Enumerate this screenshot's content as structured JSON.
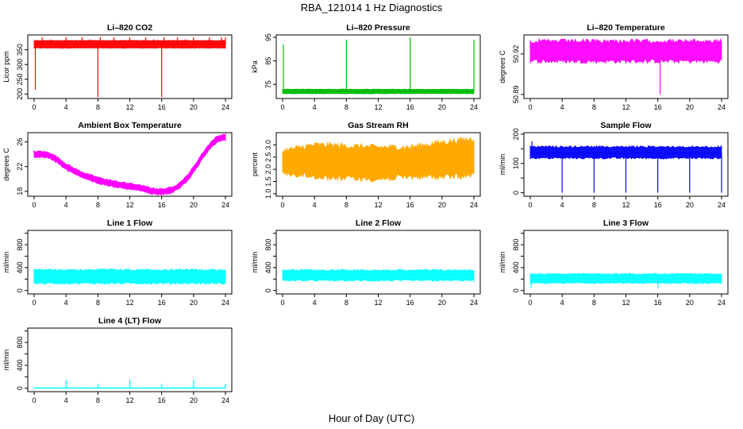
{
  "figure": {
    "title": "RBA_121014  1 Hz Diagnostics",
    "xlabel": "Hour of Day (UTC)"
  },
  "chart_data": [
    {
      "type": "line",
      "title": "Li–820 CO2",
      "ylabel": "Licor ppm",
      "color": "#ff0000",
      "xlim": [
        0,
        24
      ],
      "xticks": [
        0,
        4,
        8,
        12,
        16,
        20,
        24
      ],
      "ylim": [
        185,
        400
      ],
      "yticks": [
        200,
        250,
        300,
        350
      ],
      "yticklabels": [
        "200",
        "250",
        "300",
        "350"
      ],
      "series": [
        {
          "name": "CO2",
          "base": 368,
          "noise": 5,
          "min": 355,
          "max": 382,
          "spikes": [
            {
              "x": 0.15,
              "y": 215
            },
            {
              "x": 1.0,
              "y": 392
            },
            {
              "x": 2.0,
              "y": 385
            },
            {
              "x": 4.0,
              "y": 392
            },
            {
              "x": 6.0,
              "y": 392
            },
            {
              "x": 7.0,
              "y": 385
            },
            {
              "x": 8.0,
              "y": 190
            },
            {
              "x": 8.3,
              "y": 392
            },
            {
              "x": 10.0,
              "y": 392
            },
            {
              "x": 12.0,
              "y": 392
            },
            {
              "x": 14.0,
              "y": 392
            },
            {
              "x": 15.0,
              "y": 385
            },
            {
              "x": 16.0,
              "y": 190
            },
            {
              "x": 16.3,
              "y": 392
            },
            {
              "x": 18.0,
              "y": 392
            },
            {
              "x": 19.0,
              "y": 385
            },
            {
              "x": 20.0,
              "y": 392
            },
            {
              "x": 22.0,
              "y": 392
            },
            {
              "x": 23.5,
              "y": 392
            },
            {
              "x": 24.0,
              "y": 392
            }
          ]
        }
      ]
    },
    {
      "type": "line",
      "title": "Li–820 Pressure",
      "ylabel": "kPa",
      "color": "#00bb00",
      "xlim": [
        0,
        24
      ],
      "xticks": [
        0,
        4,
        8,
        12,
        16,
        20,
        24
      ],
      "ylim": [
        69,
        96
      ],
      "yticks": [
        75,
        85,
        95
      ],
      "yticklabels": [
        "75",
        "85",
        "95"
      ],
      "series": [
        {
          "name": "Pressure",
          "base": 71.8,
          "noise": 0.5,
          "min": 71.0,
          "max": 73.0,
          "spikes": [
            {
              "x": 0.1,
              "y": 92
            },
            {
              "x": 8.0,
              "y": 94
            },
            {
              "x": 16.0,
              "y": 95
            },
            {
              "x": 24.0,
              "y": 94
            }
          ]
        }
      ]
    },
    {
      "type": "line",
      "title": "Li–820 Temperature",
      "ylabel": "degrees C",
      "color": "#ff00ff",
      "xlim": [
        0,
        24
      ],
      "xticks": [
        0,
        4,
        8,
        12,
        16,
        20,
        24
      ],
      "ylim": [
        50.887,
        50.934
      ],
      "yticks": [
        50.89,
        50.92
      ],
      "yticklabels": [
        "50.89",
        "50.92"
      ],
      "series": [
        {
          "name": "Temperature",
          "base": 50.922,
          "noise": 0.0095,
          "min": 50.913,
          "max": 50.931,
          "spikes": [
            {
              "x": 16.3,
              "y": 50.89
            }
          ]
        }
      ]
    },
    {
      "type": "line",
      "title": "Ambient Box Temperature",
      "ylabel": "degrees C",
      "color": "#ff00ff",
      "xlim": [
        0,
        24
      ],
      "xticks": [
        0,
        4,
        8,
        12,
        16,
        20,
        24
      ],
      "ylim": [
        17.2,
        27.5
      ],
      "yticks": [
        18,
        22,
        26
      ],
      "yticklabels": [
        "18",
        "22",
        "26"
      ],
      "band": 0.9,
      "series": [
        {
          "name": "Box T",
          "x": [
            0,
            1,
            2,
            3,
            4,
            5,
            6,
            7,
            8,
            9,
            10,
            11,
            12,
            13,
            14,
            15,
            16,
            17,
            18,
            19,
            20,
            21,
            22,
            23,
            24
          ],
          "y": [
            24.0,
            24.0,
            23.8,
            23.0,
            22.0,
            21.3,
            20.7,
            20.2,
            19.8,
            19.5,
            19.2,
            19.0,
            18.8,
            18.6,
            18.3,
            18.0,
            17.9,
            18.1,
            18.7,
            19.8,
            21.5,
            23.5,
            25.3,
            26.5,
            26.8
          ]
        }
      ]
    },
    {
      "type": "line",
      "title": "Gas Stream RH",
      "ylabel": "percent",
      "color": "#ffaa00",
      "xlim": [
        0,
        24
      ],
      "xticks": [
        0,
        4,
        8,
        12,
        16,
        20,
        24
      ],
      "ylim": [
        0.9,
        3.5
      ],
      "yticks": [
        1.0,
        1.5,
        2.0,
        2.5,
        3.0
      ],
      "yticklabels": [
        "1.0",
        "1.5",
        "2.0",
        "2.5",
        "3.0"
      ],
      "series": [
        {
          "name": "RH",
          "x": [
            0,
            4,
            8,
            12,
            16,
            20,
            24
          ],
          "y": [
            2.3,
            2.35,
            2.3,
            2.25,
            2.3,
            2.4,
            2.5
          ],
          "halfwidth": [
            0.45,
            0.65,
            0.65,
            0.65,
            0.6,
            0.7,
            0.75
          ]
        }
      ]
    },
    {
      "type": "line",
      "title": "Sample Flow",
      "ylabel": "ml/min",
      "color": "#0000ff",
      "xlim": [
        0,
        24
      ],
      "xticks": [
        0,
        4,
        8,
        12,
        16,
        20,
        24
      ],
      "ylim": [
        -12,
        205
      ],
      "yticks": [
        0,
        50,
        100,
        150,
        200
      ],
      "yticklabels": [
        "0",
        "",
        "100",
        "",
        "200"
      ],
      "series": [
        {
          "name": "Sample Flow",
          "base": 135,
          "noise": 20,
          "min": 115,
          "max": 160,
          "spikes": [
            {
              "x": 0.2,
              "y": 175
            },
            {
              "x": 4.0,
              "y": 0
            },
            {
              "x": 8.0,
              "y": 0
            },
            {
              "x": 12.0,
              "y": 0
            },
            {
              "x": 16.0,
              "y": 0
            },
            {
              "x": 20.0,
              "y": 0
            },
            {
              "x": 24.0,
              "y": 0
            }
          ]
        }
      ]
    },
    {
      "type": "line",
      "title": "Line 1 Flow",
      "ylabel": "ml/min",
      "color": "#00ffff",
      "xlim": [
        0,
        24
      ],
      "xticks": [
        0,
        4,
        8,
        12,
        16,
        20,
        24
      ],
      "ylim": [
        -60,
        1050
      ],
      "yticks": [
        0,
        200,
        400,
        600,
        800,
        1000
      ],
      "yticklabels": [
        "0",
        "",
        "400",
        "",
        "800",
        ""
      ],
      "series": [
        {
          "name": "Line 1",
          "base": 245,
          "noise": 100,
          "min": 110,
          "max": 380,
          "spikes": []
        }
      ]
    },
    {
      "type": "line",
      "title": "Line 2 Flow",
      "ylabel": "ml/min",
      "color": "#00ffff",
      "xlim": [
        0,
        24
      ],
      "xticks": [
        0,
        4,
        8,
        12,
        16,
        20,
        24
      ],
      "ylim": [
        -60,
        1050
      ],
      "yticks": [
        0,
        200,
        400,
        600,
        800,
        1000
      ],
      "yticklabels": [
        "0",
        "",
        "400",
        "",
        "800",
        ""
      ],
      "series": [
        {
          "name": "Line 2",
          "base": 270,
          "noise": 85,
          "min": 160,
          "max": 370,
          "spikes": []
        }
      ]
    },
    {
      "type": "line",
      "title": "Line 3 Flow",
      "ylabel": "ml/min",
      "color": "#00ffff",
      "xlim": [
        0,
        24
      ],
      "xticks": [
        0,
        4,
        8,
        12,
        16,
        20,
        24
      ],
      "ylim": [
        -60,
        1050
      ],
      "yticks": [
        0,
        200,
        400,
        600,
        800,
        1000
      ],
      "yticklabels": [
        "0",
        "",
        "400",
        "",
        "800",
        ""
      ],
      "series": [
        {
          "name": "Line 3",
          "base": 200,
          "noise": 60,
          "min": 120,
          "max": 300,
          "spikes": [
            {
              "x": 0.1,
              "y": 40
            },
            {
              "x": 16.0,
              "y": 40
            }
          ]
        }
      ]
    },
    {
      "type": "line",
      "title": "Line 4 (LT) Flow",
      "ylabel": "ml/min",
      "color": "#00ffff",
      "xlim": [
        0,
        24
      ],
      "xticks": [
        0,
        4,
        8,
        12,
        16,
        20,
        24
      ],
      "ylim": [
        -60,
        1050
      ],
      "yticks": [
        0,
        200,
        400,
        600,
        800,
        1000
      ],
      "yticklabels": [
        "0",
        "",
        "400",
        "",
        "800",
        ""
      ],
      "series": [
        {
          "name": "Line 4",
          "base": 5,
          "noise": 3,
          "min": 0,
          "max": 10,
          "spikes": [
            {
              "x": 4.0,
              "y": 150
            },
            {
              "x": 8.0,
              "y": 80
            },
            {
              "x": 12.0,
              "y": 150
            },
            {
              "x": 16.0,
              "y": 80
            },
            {
              "x": 20.0,
              "y": 150
            },
            {
              "x": 24.0,
              "y": 80
            }
          ]
        }
      ]
    }
  ]
}
